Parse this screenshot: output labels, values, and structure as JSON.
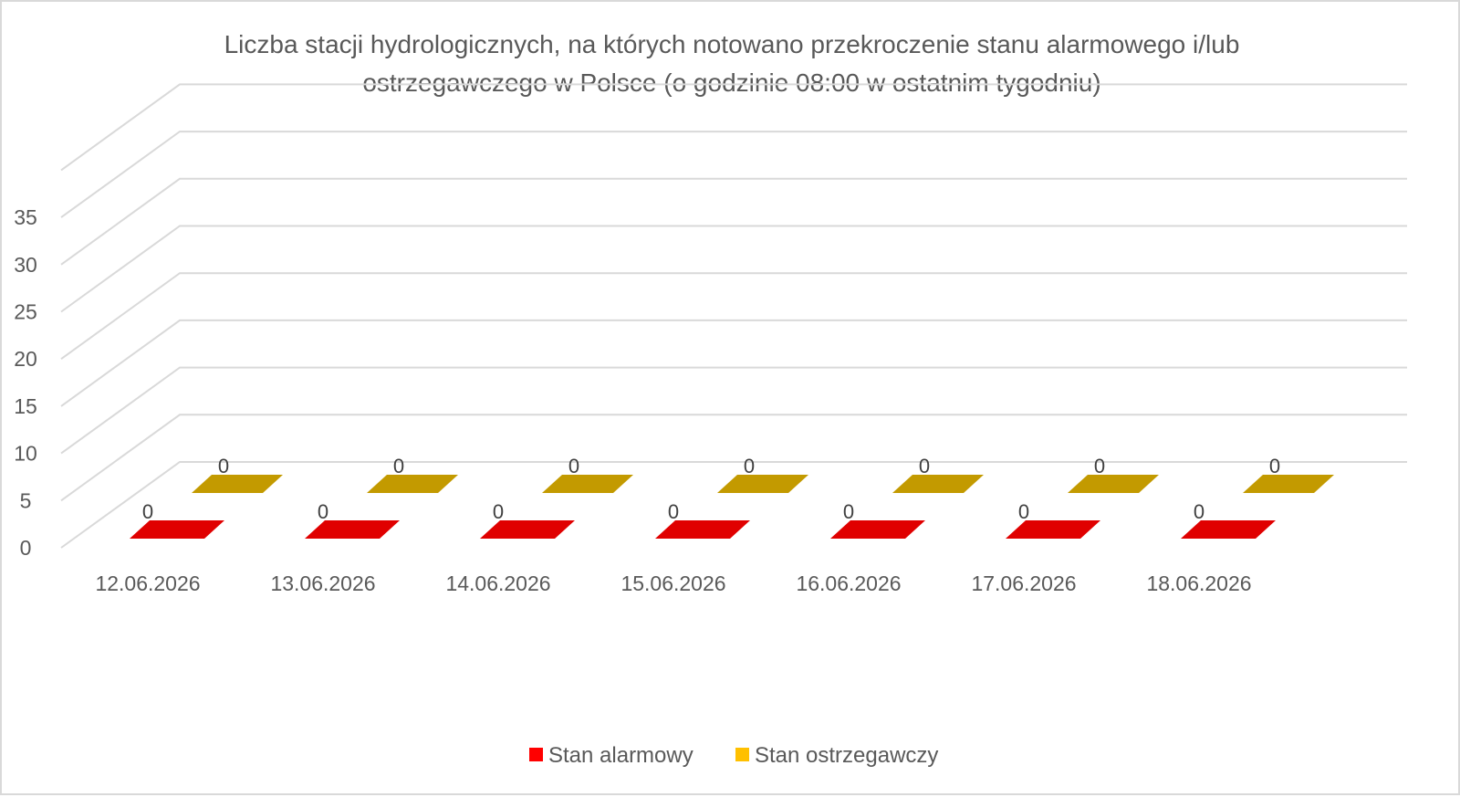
{
  "chart_data": {
    "type": "bar",
    "title": "Liczba stacji hydrologicznych, na których notowano przekroczenie stanu alarmowego i/lub ostrzegawczego w Polsce (o godzinie 08:00 w ostatnim tygodniu)",
    "title_lines": [
      "Liczba stacji hydrologicznych, na których notowano przekroczenie stanu alarmowego i/lub",
      "ostrzegawczego w Polsce (o godzinie 08:00 w ostatnim tygodniu)"
    ],
    "categories": [
      "12.06.2026",
      "13.06.2026",
      "14.06.2026",
      "15.06.2026",
      "16.06.2026",
      "17.06.2026",
      "18.06.2026"
    ],
    "series": [
      {
        "name": "Stan alarmowy",
        "values": [
          0,
          0,
          0,
          0,
          0,
          0,
          0
        ],
        "color": "#e00000"
      },
      {
        "name": "Stan ostrzegawczy",
        "values": [
          0,
          0,
          0,
          0,
          0,
          0,
          0
        ],
        "color": "#c39a00"
      }
    ],
    "yticks": [
      "0",
      "5",
      "10",
      "15",
      "20",
      "25",
      "30",
      "35"
    ],
    "ylim": [
      0,
      35
    ],
    "grid": true,
    "style": "3d-column",
    "legend_position": "bottom",
    "legend_colors": [
      "#ff0000",
      "#ffc000"
    ]
  }
}
